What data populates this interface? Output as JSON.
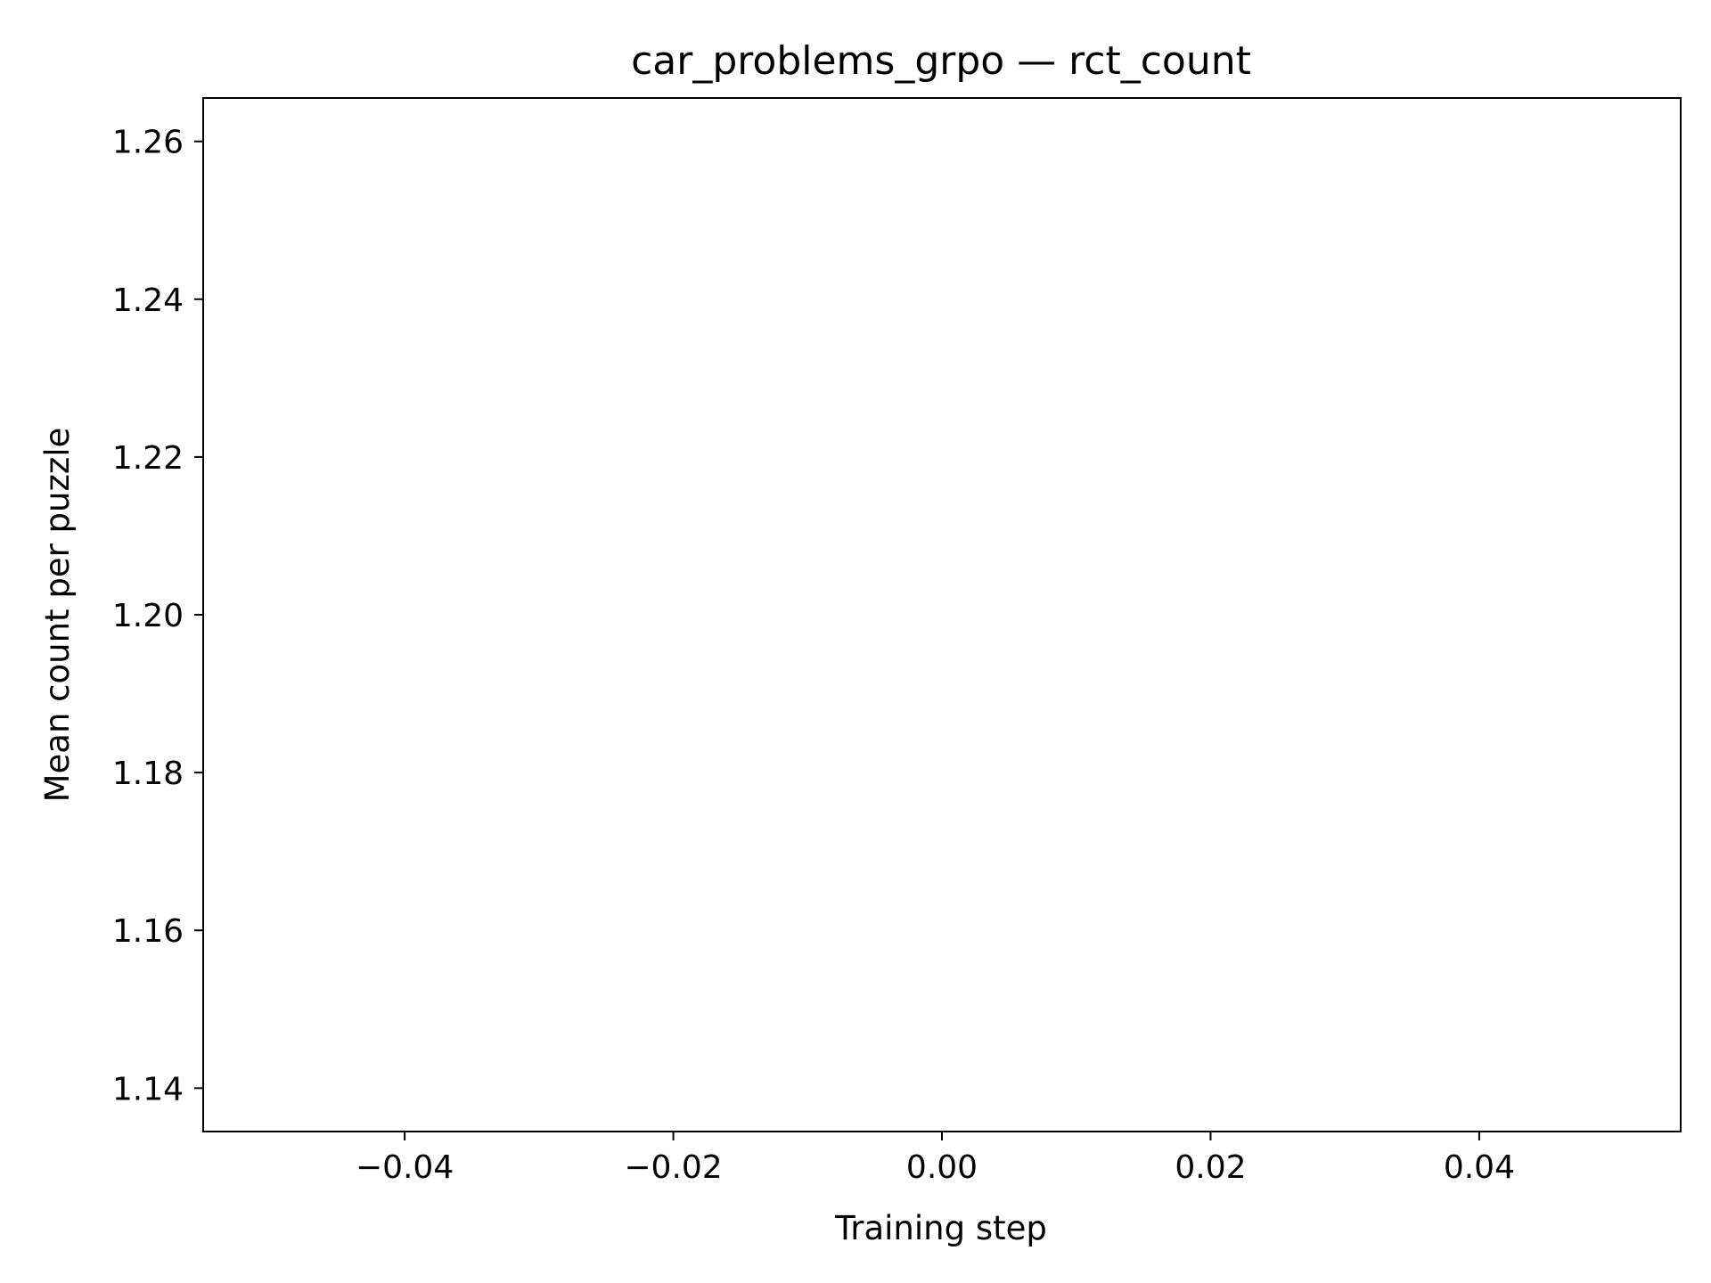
{
  "chart_data": {
    "type": "line",
    "title": "car_problems_grpo — rct_count",
    "xlabel": "Training step",
    "ylabel": "Mean count per puzzle",
    "xlim": [
      -0.055,
      0.055
    ],
    "ylim": [
      1.1345,
      1.2655
    ],
    "x_ticks": [
      -0.04,
      -0.02,
      0.0,
      0.02,
      0.04
    ],
    "x_tick_labels": [
      "−0.04",
      "−0.02",
      "0.00",
      "0.02",
      "0.04"
    ],
    "y_ticks": [
      1.14,
      1.16,
      1.18,
      1.2,
      1.22,
      1.24,
      1.26
    ],
    "y_tick_labels": [
      "1.14",
      "1.16",
      "1.18",
      "1.20",
      "1.22",
      "1.24",
      "1.26"
    ],
    "series": [],
    "grid": false,
    "colors": {
      "axis": "#000000",
      "background": "#ffffff"
    }
  }
}
